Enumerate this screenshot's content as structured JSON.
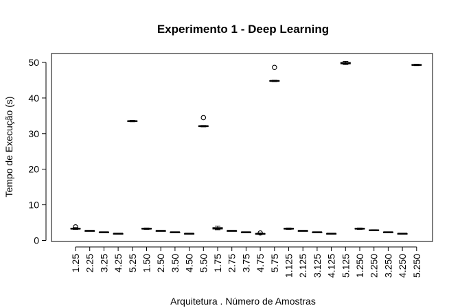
{
  "chart_data": {
    "type": "box",
    "title": "Experimento 1 - Deep Learning",
    "xlabel": "Arquitetura . Número de Amostras",
    "ylabel": "Tempo de Execução (s)",
    "ylim": [
      0,
      52
    ],
    "yticks": [
      0,
      10,
      20,
      30,
      40,
      50
    ],
    "grid": false,
    "categories": [
      "1.25",
      "2.25",
      "3.25",
      "4.25",
      "5.25",
      "1.50",
      "2.50",
      "3.50",
      "4.50",
      "5.50",
      "1.75",
      "2.75",
      "3.75",
      "4.75",
      "5.75",
      "1.125",
      "2.125",
      "3.125",
      "4.125",
      "5.125",
      "1.250",
      "2.250",
      "3.250",
      "4.250",
      "5.250"
    ],
    "boxes": [
      {
        "min": 3.1,
        "q1": 3.2,
        "median": 3.3,
        "q3": 3.4,
        "max": 3.6,
        "outliers": [
          3.8
        ]
      },
      {
        "min": 2.6,
        "q1": 2.65,
        "median": 2.7,
        "q3": 2.75,
        "max": 2.8,
        "outliers": []
      },
      {
        "min": 2.2,
        "q1": 2.25,
        "median": 2.3,
        "q3": 2.35,
        "max": 2.4,
        "outliers": []
      },
      {
        "min": 1.8,
        "q1": 1.85,
        "median": 1.9,
        "q3": 1.95,
        "max": 2.0,
        "outliers": []
      },
      {
        "min": 33.3,
        "q1": 33.4,
        "median": 33.5,
        "q3": 33.6,
        "max": 33.7,
        "outliers": []
      },
      {
        "min": 3.1,
        "q1": 3.2,
        "median": 3.3,
        "q3": 3.4,
        "max": 3.5,
        "outliers": []
      },
      {
        "min": 2.6,
        "q1": 2.65,
        "median": 2.7,
        "q3": 2.75,
        "max": 2.8,
        "outliers": []
      },
      {
        "min": 2.2,
        "q1": 2.25,
        "median": 2.3,
        "q3": 2.35,
        "max": 2.4,
        "outliers": []
      },
      {
        "min": 1.8,
        "q1": 1.85,
        "median": 1.9,
        "q3": 1.95,
        "max": 2.0,
        "outliers": []
      },
      {
        "min": 31.9,
        "q1": 32.0,
        "median": 32.1,
        "q3": 32.2,
        "max": 32.3,
        "outliers": [
          34.5
        ]
      },
      {
        "min": 3.0,
        "q1": 3.2,
        "median": 3.4,
        "q3": 3.6,
        "max": 4.0,
        "outliers": []
      },
      {
        "min": 2.6,
        "q1": 2.65,
        "median": 2.7,
        "q3": 2.75,
        "max": 2.8,
        "outliers": []
      },
      {
        "min": 2.2,
        "q1": 2.25,
        "median": 2.3,
        "q3": 2.35,
        "max": 2.4,
        "outliers": []
      },
      {
        "min": 1.7,
        "q1": 1.8,
        "median": 1.85,
        "q3": 1.95,
        "max": 2.1,
        "outliers": [
          2.1
        ]
      },
      {
        "min": 44.6,
        "q1": 44.7,
        "median": 44.8,
        "q3": 44.9,
        "max": 45.0,
        "outliers": [
          48.6
        ]
      },
      {
        "min": 3.1,
        "q1": 3.2,
        "median": 3.3,
        "q3": 3.4,
        "max": 3.5,
        "outliers": []
      },
      {
        "min": 2.6,
        "q1": 2.65,
        "median": 2.7,
        "q3": 2.75,
        "max": 2.8,
        "outliers": []
      },
      {
        "min": 2.2,
        "q1": 2.25,
        "median": 2.3,
        "q3": 2.35,
        "max": 2.4,
        "outliers": []
      },
      {
        "min": 1.8,
        "q1": 1.85,
        "median": 1.9,
        "q3": 1.95,
        "max": 2.0,
        "outliers": []
      },
      {
        "min": 49.4,
        "q1": 49.6,
        "median": 49.8,
        "q3": 50.0,
        "max": 50.3,
        "outliers": []
      },
      {
        "min": 3.1,
        "q1": 3.2,
        "median": 3.3,
        "q3": 3.4,
        "max": 3.5,
        "outliers": []
      },
      {
        "min": 2.7,
        "q1": 2.75,
        "median": 2.85,
        "q3": 2.95,
        "max": 3.0,
        "outliers": []
      },
      {
        "min": 2.2,
        "q1": 2.25,
        "median": 2.3,
        "q3": 2.35,
        "max": 2.4,
        "outliers": []
      },
      {
        "min": 1.8,
        "q1": 1.85,
        "median": 1.9,
        "q3": 1.95,
        "max": 2.0,
        "outliers": []
      },
      {
        "min": 49.1,
        "q1": 49.2,
        "median": 49.3,
        "q3": 49.4,
        "max": 49.5,
        "outliers": []
      }
    ]
  }
}
